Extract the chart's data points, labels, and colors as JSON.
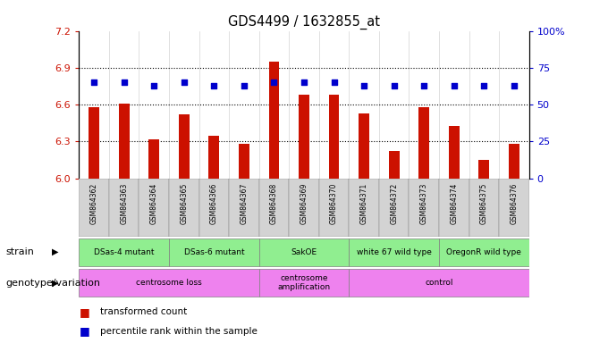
{
  "title": "GDS4499 / 1632855_at",
  "samples": [
    "GSM864362",
    "GSM864363",
    "GSM864364",
    "GSM864365",
    "GSM864366",
    "GSM864367",
    "GSM864368",
    "GSM864369",
    "GSM864370",
    "GSM864371",
    "GSM864372",
    "GSM864373",
    "GSM864374",
    "GSM864375",
    "GSM864376"
  ],
  "bar_values": [
    6.58,
    6.61,
    6.32,
    6.52,
    6.35,
    6.28,
    6.95,
    6.68,
    6.68,
    6.53,
    6.22,
    6.58,
    6.43,
    6.15,
    6.28
  ],
  "dot_values": [
    65,
    65,
    63,
    65,
    63,
    63,
    65,
    65,
    65,
    63,
    63,
    63,
    63,
    63,
    63
  ],
  "ylim_left": [
    6.0,
    7.2
  ],
  "ylim_right": [
    0,
    100
  ],
  "yticks_left": [
    6.0,
    6.3,
    6.6,
    6.9,
    7.2
  ],
  "yticks_right": [
    0,
    25,
    50,
    75,
    100
  ],
  "hlines": [
    6.3,
    6.6,
    6.9
  ],
  "bar_color": "#CC1100",
  "dot_color": "#0000CC",
  "bar_bottom": 6.0,
  "strain_groups": [
    {
      "label": "DSas-4 mutant",
      "start": 0,
      "end": 2,
      "color": "#90EE90"
    },
    {
      "label": "DSas-6 mutant",
      "start": 3,
      "end": 5,
      "color": "#90EE90"
    },
    {
      "label": "SakOE",
      "start": 6,
      "end": 8,
      "color": "#90EE90"
    },
    {
      "label": "white 67 wild type",
      "start": 9,
      "end": 11,
      "color": "#90EE90"
    },
    {
      "label": "OregonR wild type",
      "start": 12,
      "end": 14,
      "color": "#90EE90"
    }
  ],
  "geno_groups": [
    {
      "label": "centrosome loss",
      "start": 0,
      "end": 5,
      "color": "#EE82EE"
    },
    {
      "label": "centrosome\namplification",
      "start": 6,
      "end": 8,
      "color": "#EE82EE"
    },
    {
      "label": "control",
      "start": 9,
      "end": 14,
      "color": "#EE82EE"
    }
  ],
  "legend_items": [
    {
      "color": "#CC1100",
      "label": "transformed count"
    },
    {
      "color": "#0000CC",
      "label": "percentile rank within the sample"
    }
  ],
  "strain_label": "strain",
  "geno_label": "genotype/variation",
  "left_axis_color": "#CC1100",
  "right_axis_color": "#0000CC",
  "tick_label_bg": "#D3D3D3",
  "bar_width": 0.35
}
